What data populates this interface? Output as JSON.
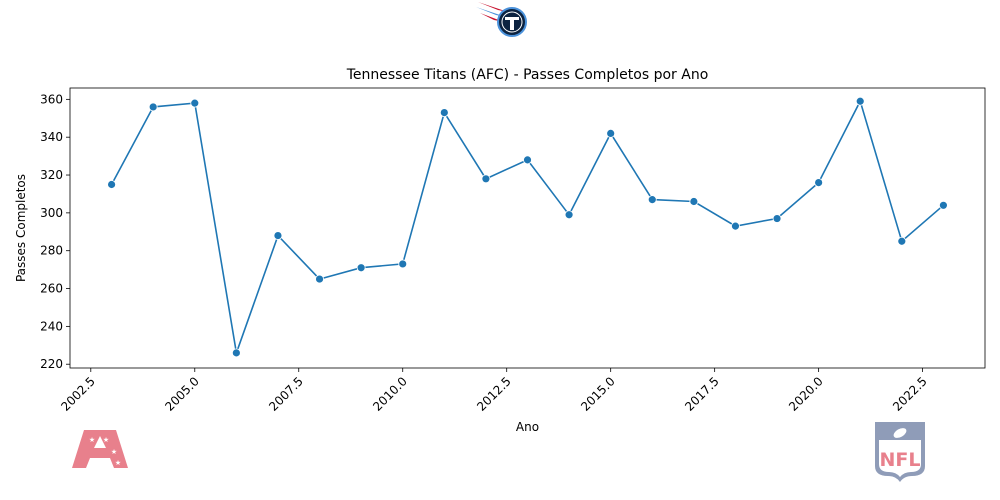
{
  "chart_data": {
    "type": "line",
    "title": "Tennessee Titans (AFC) - Passes Completos por Ano",
    "xlabel": "Ano",
    "ylabel": "Passes Completos",
    "xlim": [
      2002.0,
      2024.0
    ],
    "ylim": [
      218,
      366
    ],
    "grid": false,
    "x_ticks": [
      "2002.5",
      "2005.0",
      "2007.5",
      "2010.0",
      "2012.5",
      "2015.0",
      "2017.5",
      "2020.0",
      "2022.5"
    ],
    "y_ticks": [
      "220",
      "240",
      "260",
      "280",
      "300",
      "320",
      "340",
      "360"
    ],
    "series": [
      {
        "x": [
          2003,
          2004,
          2005,
          2006,
          2007,
          2008,
          2009,
          2010,
          2011,
          2012,
          2013,
          2014,
          2015,
          2016,
          2017,
          2018,
          2019,
          2020,
          2021,
          2022,
          2023
        ],
        "values": [
          315,
          356,
          358,
          226,
          288,
          265,
          271,
          273,
          353,
          318,
          328,
          299,
          342,
          307,
          306,
          293,
          297,
          316,
          359,
          285,
          304
        ]
      }
    ],
    "line_color": "#1f77b4",
    "marker_color": "#1f77b4"
  },
  "logos": {
    "team": {
      "name": "titans-logo",
      "letter": "T",
      "colors": [
        "#0c2340",
        "#4b92db",
        "#c8102e"
      ]
    },
    "conference": {
      "name": "afc-logo",
      "text": "AFC",
      "color": "#e8808c"
    },
    "league": {
      "name": "nfl-logo",
      "text": "NFL",
      "colors": [
        "#8f9cb8",
        "#e8808c"
      ]
    }
  }
}
